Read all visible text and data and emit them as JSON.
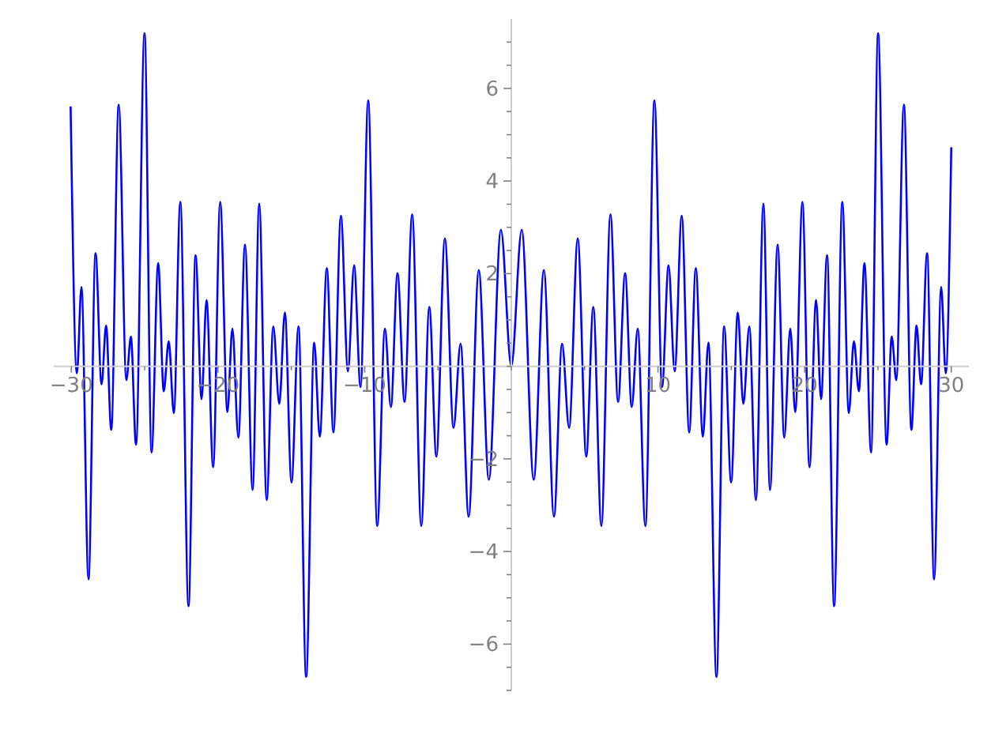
{
  "chart_data": {
    "type": "line",
    "x": [
      -30.05,
      -29.62,
      -29.31,
      -28.83,
      -28.35,
      -27.94,
      -27.63,
      -27.28,
      -26.77,
      -26.25,
      -25.94,
      -25.59,
      -25.01,
      -24.53,
      -24.08,
      -23.7,
      -23.36,
      -23.01,
      -22.57,
      -22.01,
      -21.53,
      -21.12,
      -20.78,
      -20.33,
      -19.85,
      -19.36,
      -19.02,
      -18.61,
      -18.16,
      -17.64,
      -17.19,
      -16.68,
      -16.23,
      -15.82,
      -15.44,
      -14.99,
      -14.51,
      -13.99,
      -13.44,
      -13.06,
      -12.58,
      -12.13,
      -11.62,
      -11.14,
      -10.72,
      -10.28,
      -9.76,
      -9.14,
      -8.62,
      -8.21,
      -7.76,
      -7.28,
      -6.76,
      -6.14,
      -5.59,
      -5.11,
      -4.53,
      -3.94,
      -3.46,
      -2.91,
      -2.22,
      -1.53,
      -0.71,
      0,
      0.71,
      1.53,
      2.22,
      2.91,
      3.46,
      3.94,
      4.53,
      5.11,
      5.59,
      6.14,
      6.76,
      7.28,
      7.76,
      8.21,
      8.62,
      9.14,
      9.76,
      10.28,
      10.72,
      11.14,
      11.62,
      12.13,
      12.58,
      13.06,
      13.44,
      13.99,
      14.51,
      14.99,
      15.44,
      15.82,
      16.23,
      16.68,
      17.19,
      17.64,
      18.16,
      18.61,
      19.02,
      19.36,
      19.85,
      20.33,
      20.78,
      21.12,
      21.53,
      22.01,
      22.57,
      23.01,
      23.36,
      23.7,
      24.08,
      24.53,
      25.01,
      25.59,
      25.94,
      26.25,
      26.77,
      27.28,
      27.63,
      27.94,
      28.35,
      28.83,
      29.31,
      29.62,
      30
    ],
    "series": [
      {
        "color": "#0000ff",
        "values": [
          5.61,
          -0.15,
          1.71,
          -4.6,
          2.44,
          -0.39,
          0.88,
          -1.37,
          5.65,
          -0.3,
          0.64,
          -1.69,
          7.19,
          -1.86,
          2.23,
          -0.54,
          0.54,
          -1.01,
          3.55,
          -5.18,
          2.4,
          -0.71,
          1.43,
          -2.18,
          3.55,
          -0.99,
          0.81,
          -1.54,
          2.63,
          -2.67,
          3.51,
          -2.89,
          0.86,
          -0.81,
          1.16,
          -2.51,
          0.86,
          -6.71,
          0.51,
          -1.52,
          2.12,
          -1.43,
          3.25,
          -0.11,
          2.18,
          -0.45,
          5.74,
          -3.45,
          0.81,
          -0.88,
          2.01,
          -0.77,
          3.28,
          -3.45,
          1.28,
          -1.95,
          2.76,
          -1.33,
          0.49,
          -3.25,
          2.08,
          -2.45,
          2.95,
          0,
          2.95,
          -2.45,
          2.08,
          -3.25,
          0.49,
          -1.33,
          2.76,
          -1.95,
          1.28,
          -3.45,
          3.28,
          -0.77,
          2.01,
          -0.88,
          0.81,
          -3.45,
          5.74,
          -0.45,
          2.18,
          -0.11,
          3.25,
          -1.43,
          2.12,
          -1.52,
          0.51,
          -6.71,
          0.86,
          -2.51,
          1.16,
          -0.81,
          0.86,
          -2.89,
          3.51,
          -2.67,
          2.63,
          -1.54,
          0.81,
          -0.99,
          3.55,
          -2.18,
          1.43,
          -0.71,
          2.4,
          -5.18,
          3.55,
          -1.01,
          0.54,
          -0.54,
          2.23,
          -1.86,
          7.19,
          -1.69,
          0.64,
          -0.3,
          5.65,
          -1.37,
          0.88,
          -0.39,
          2.44,
          -4.6,
          1.71,
          -0.15,
          4.73
        ]
      }
    ],
    "xlim": [
      -31.2,
      31.2
    ],
    "ylim": [
      -7,
      7.5
    ],
    "xticks": [
      {
        "value": -30,
        "label": "−30"
      },
      {
        "value": -25,
        "label": null
      },
      {
        "value": -20,
        "label": "−20"
      },
      {
        "value": -15,
        "label": null
      },
      {
        "value": -10,
        "label": "−10"
      },
      {
        "value": -5,
        "label": null
      },
      {
        "value": 0,
        "label": null
      },
      {
        "value": 5,
        "label": null
      },
      {
        "value": 10,
        "label": "10"
      },
      {
        "value": 15,
        "label": null
      },
      {
        "value": 20,
        "label": "20"
      },
      {
        "value": 25,
        "label": null
      },
      {
        "value": 30,
        "label": "30"
      }
    ],
    "yticks": [
      {
        "value": -7,
        "label": null
      },
      {
        "value": -6.5,
        "label": null
      },
      {
        "value": -6,
        "label": "−6"
      },
      {
        "value": -5.5,
        "label": null
      },
      {
        "value": -5,
        "label": null
      },
      {
        "value": -4.5,
        "label": null
      },
      {
        "value": -4,
        "label": "−4"
      },
      {
        "value": -3.5,
        "label": null
      },
      {
        "value": -3,
        "label": null
      },
      {
        "value": -2.5,
        "label": null
      },
      {
        "value": -2,
        "label": "−2"
      },
      {
        "value": -1.5,
        "label": null
      },
      {
        "value": -1,
        "label": null
      },
      {
        "value": -0.5,
        "label": null
      },
      {
        "value": 0,
        "label": null
      },
      {
        "value": 0.5,
        "label": null
      },
      {
        "value": 1,
        "label": null
      },
      {
        "value": 1.5,
        "label": null
      },
      {
        "value": 2,
        "label": "2"
      },
      {
        "value": 2.5,
        "label": null
      },
      {
        "value": 3,
        "label": null
      },
      {
        "value": 3.5,
        "label": null
      },
      {
        "value": 4,
        "label": "4"
      },
      {
        "value": 4.5,
        "label": null
      },
      {
        "value": 5,
        "label": null
      },
      {
        "value": 5.5,
        "label": null
      },
      {
        "value": 6,
        "label": "6"
      },
      {
        "value": 6.5,
        "label": null
      },
      {
        "value": 7,
        "label": null
      }
    ]
  }
}
